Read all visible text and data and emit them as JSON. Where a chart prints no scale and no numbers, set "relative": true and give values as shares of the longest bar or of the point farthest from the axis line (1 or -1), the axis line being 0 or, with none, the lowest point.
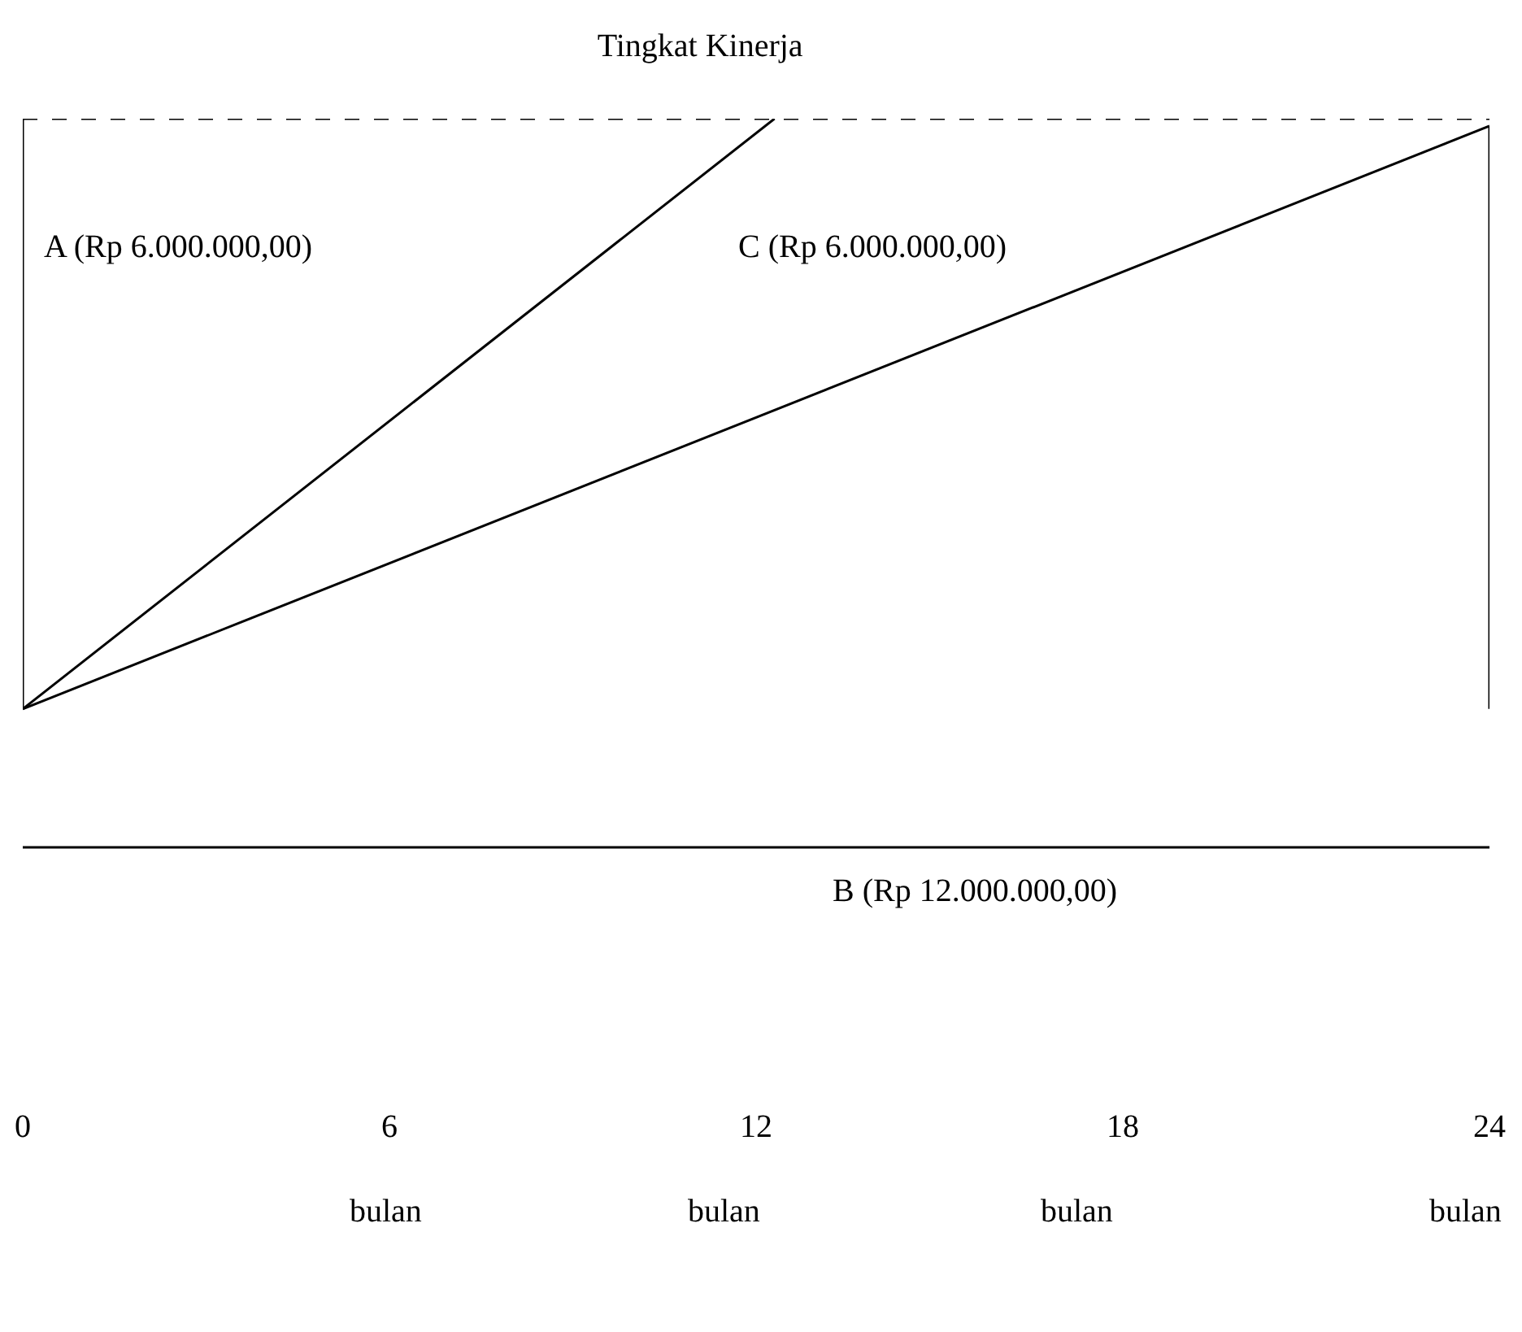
{
  "chart_data": {
    "type": "line",
    "title": "Tingkat Kinerja",
    "relative": true,
    "series": [
      {
        "color": "#000000",
        "x": [
          0,
          12.3
        ],
        "values": [
          0.19,
          1
        ]
      },
      {
        "color": "#000000",
        "x": [
          0,
          24
        ],
        "values": [
          0.19,
          0.99
        ]
      },
      {
        "color": "#000000",
        "x": [
          0,
          24
        ],
        "values": [
          0,
          0
        ]
      },
      {
        "color": "#000000",
        "x": [
          0,
          0
        ],
        "values": [
          0.19,
          1
        ]
      },
      {
        "color": "#000000",
        "x": [
          24,
          24
        ],
        "values": [
          0.19,
          0.99
        ]
      }
    ],
    "xlim": [
      0,
      24
    ],
    "xticks": [
      0,
      6,
      12,
      18,
      24
    ],
    "ref_lines": [
      {
        "axis": "y",
        "value": 1,
        "color": "#000000",
        "line_style": "dashed"
      }
    ],
    "annotations": [
      "A (Rp 6.000.000,00)",
      "C (Rp 6.000.000,00)",
      "B (Rp 12.000.000,00)",
      "bulan",
      "bulan",
      "bulan",
      "bulan"
    ],
    "grid": false,
    "marker": "none",
    "line_style": "solid"
  }
}
